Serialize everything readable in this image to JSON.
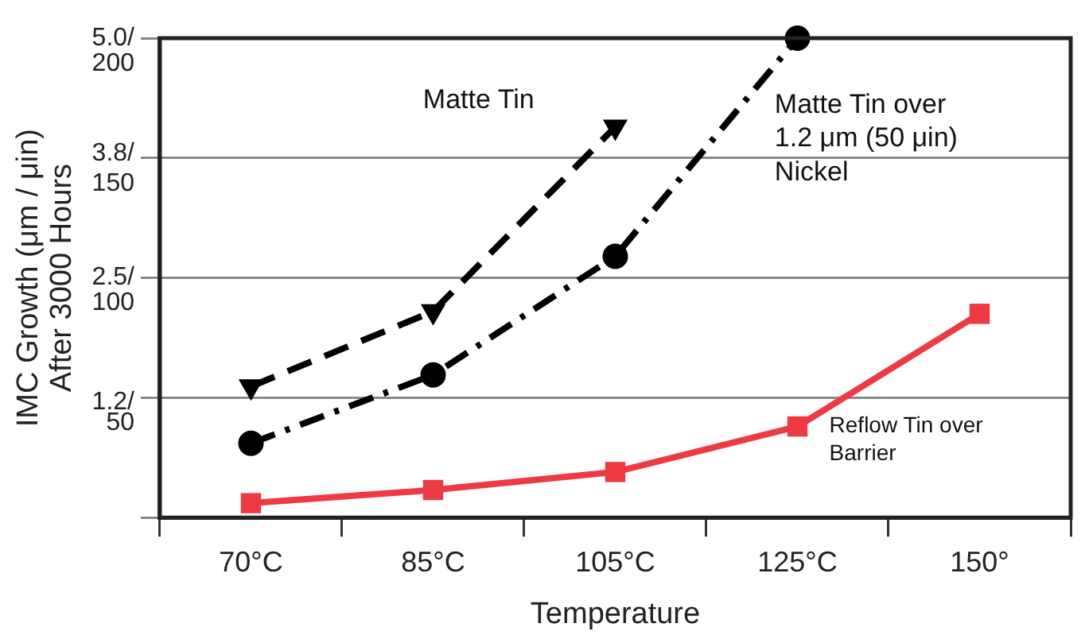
{
  "chart_data": {
    "type": "line",
    "xlabel": "Temperature",
    "ylabel": "IMC Growth (μm / μin)\nAfter 3000 Hours",
    "categories": [
      "70°C",
      "85°C",
      "105°C",
      "125°C",
      "150°"
    ],
    "ylim": [
      0,
      200
    ],
    "yticks": [
      {
        "value": 0,
        "label": null
      },
      50,
      100,
      150,
      200
    ],
    "y2lim": [
      0,
      5.0
    ],
    "y2ticks": [
      {
        "value": 1.2,
        "label": "1.2/"
      },
      {
        "value": 2.5,
        "label": "2.5/"
      },
      {
        "value": 3.8,
        "label": "3.8/"
      },
      {
        "value": 5.0,
        "label": "5.0/"
      }
    ],
    "grid": "y",
    "legend": false,
    "series": [
      {
        "name": "Matte Tin",
        "color": "#000000",
        "marker": "triangle",
        "line_style": "dashed",
        "values": [
          54.7,
          86,
          163,
          null,
          null
        ]
      },
      {
        "name": "Matte Tin over\n1.2 μm (50 μin)\nNickel",
        "color": "#000000",
        "marker": "circle",
        "line_style": "dashdot",
        "values": [
          31,
          59.5,
          109,
          200,
          null
        ]
      },
      {
        "name": "Reflow Tin over\nBarrier",
        "color": "#ee3a43",
        "marker": "square",
        "line_style": "solid",
        "values": [
          6,
          11.5,
          19,
          38,
          85
        ]
      }
    ]
  }
}
